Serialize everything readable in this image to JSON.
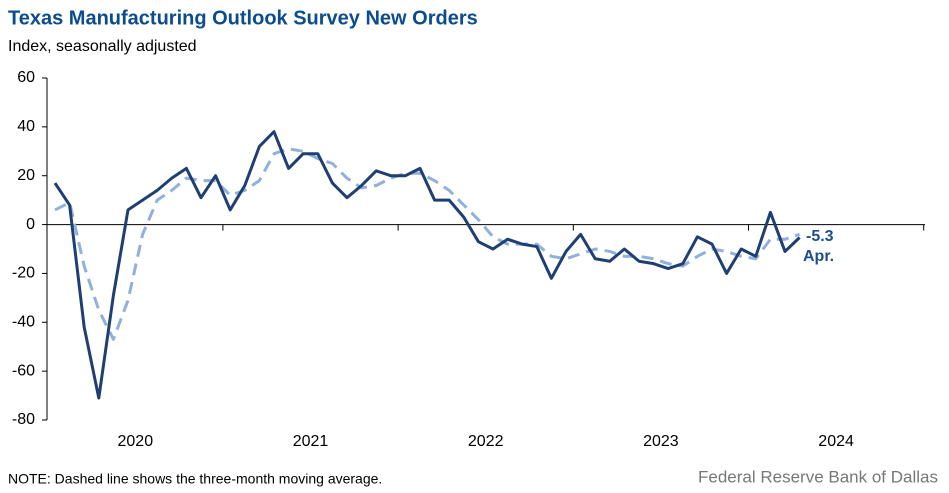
{
  "chart_data": {
    "type": "line",
    "title": "Texas Manufacturing Outlook Survey New Orders",
    "subtitle": "Index, seasonally adjusted",
    "note": "NOTE: Dashed line shows the three-month  moving average.",
    "source": "Federal Reserve Bank of Dallas",
    "annotations": [
      "-5.3",
      "Apr."
    ],
    "x_axis_labels": [
      "2020",
      "2021",
      "2022",
      "2023",
      "2024"
    ],
    "ylim": [
      -80,
      60
    ],
    "yticks": [
      -80,
      -60,
      -40,
      -20,
      0,
      20,
      40,
      60
    ],
    "series": [
      {
        "name": "New orders",
        "color": "#1f3f73",
        "dash": false,
        "values": [
          17,
          8,
          -42,
          -71,
          -29,
          6,
          10,
          14,
          19,
          23,
          11,
          20,
          6,
          16,
          32,
          38,
          23,
          29,
          29,
          17,
          11,
          16,
          22,
          20,
          20,
          23,
          10,
          10,
          3,
          -7,
          -10,
          -6,
          -8,
          -9,
          -22,
          -11,
          -4,
          -14,
          -15,
          -10,
          -15,
          -16,
          -18,
          -16,
          -5,
          -8,
          -20,
          -10,
          -13,
          5,
          -11,
          -5.3
        ]
      },
      {
        "name": "Three-month moving average",
        "color": "#8fb1dc",
        "dash": true,
        "values": [
          6,
          9,
          -17,
          -35,
          -47,
          -31,
          -4,
          10,
          14,
          19,
          18,
          18,
          12,
          14,
          18,
          29,
          31,
          30,
          27,
          25,
          19,
          15,
          16,
          19,
          21,
          21,
          18,
          14,
          8,
          2,
          -5,
          -8,
          -8,
          -8,
          -13,
          -14,
          -12,
          -10,
          -11,
          -13,
          -13,
          -14,
          -16,
          -17,
          -13,
          -10,
          -11,
          -13,
          -14,
          -6,
          -6,
          -4
        ]
      }
    ]
  }
}
